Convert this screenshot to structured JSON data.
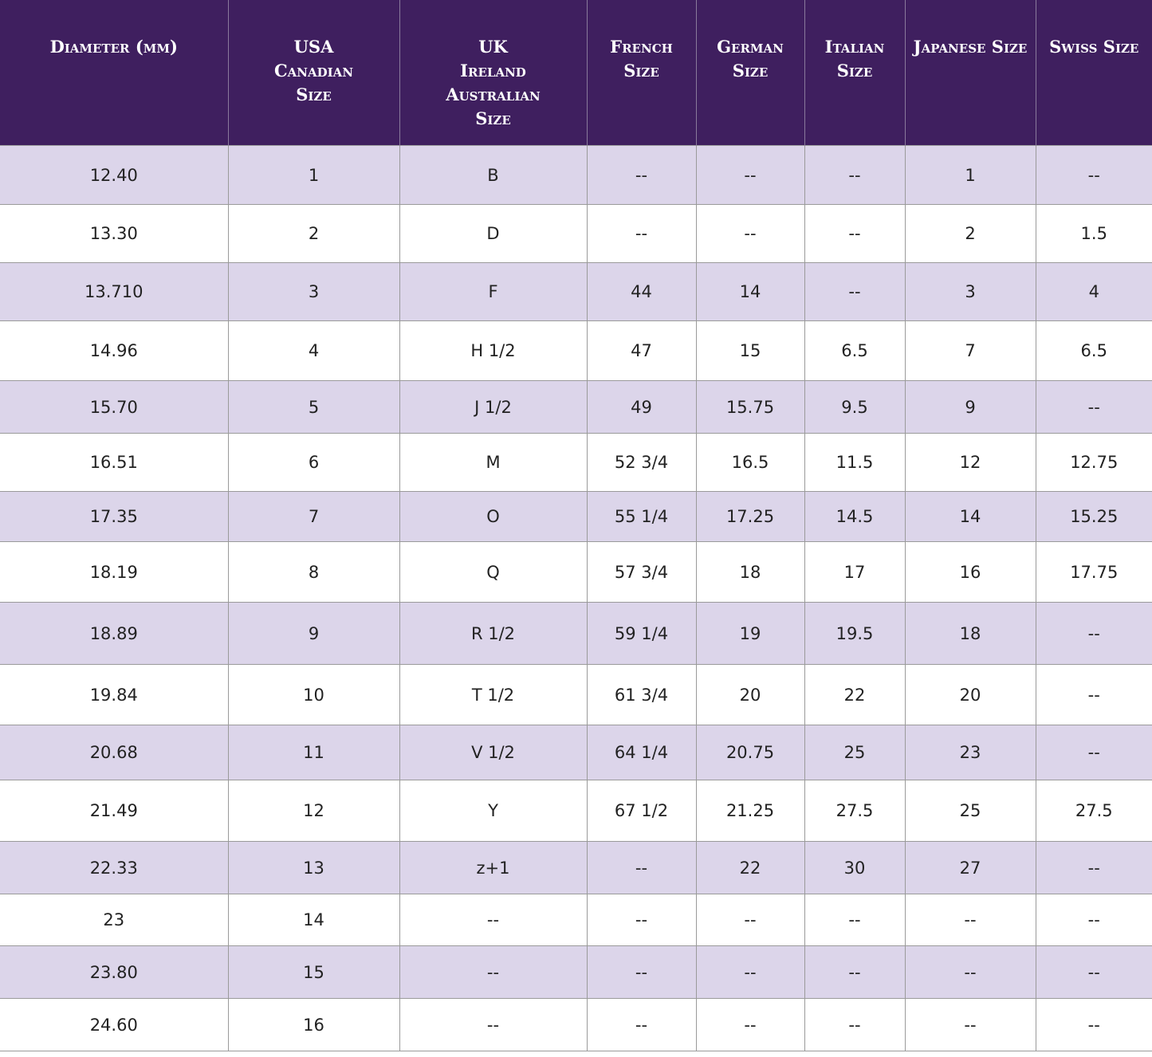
{
  "table": {
    "header": [
      [
        "Diameter (mm)"
      ],
      [
        "USA",
        "Canadian",
        "Size"
      ],
      [
        "UK",
        "Ireland",
        "Australian",
        "Size"
      ],
      [
        "French",
        "Size"
      ],
      [
        "German",
        "Size"
      ],
      [
        "Italian",
        "Size"
      ],
      [
        "Japanese Size"
      ],
      [
        "Swiss Size"
      ]
    ],
    "rows": [
      [
        "12.40",
        "1",
        "B",
        "--",
        "--",
        "--",
        "1",
        "--"
      ],
      [
        "13.30",
        "2",
        "D",
        "--",
        "--",
        "--",
        "2",
        "1.5"
      ],
      [
        "13.710",
        "3",
        "F",
        "44",
        "14",
        "--",
        "3",
        "4"
      ],
      [
        "14.96",
        "4",
        "H 1/2",
        "47",
        "15",
        "6.5",
        "7",
        "6.5"
      ],
      [
        "15.70",
        "5",
        "J 1/2",
        "49",
        "15.75",
        "9.5",
        "9",
        "--"
      ],
      [
        "16.51",
        "6",
        "M",
        "52 3/4",
        "16.5",
        "11.5",
        "12",
        "12.75"
      ],
      [
        "17.35",
        "7",
        "O",
        "55 1/4",
        "17.25",
        "14.5",
        "14",
        "15.25"
      ],
      [
        "18.19",
        "8",
        "Q",
        "57 3/4",
        "18",
        "17",
        "16",
        "17.75"
      ],
      [
        "18.89",
        "9",
        "R 1/2",
        "59 1/4",
        "19",
        "19.5",
        "18",
        "--"
      ],
      [
        "19.84",
        "10",
        "T 1/2",
        "61 3/4",
        "20",
        "22",
        "20",
        "--"
      ],
      [
        "20.68",
        "11",
        "V 1/2",
        "64 1/4",
        "20.75",
        "25",
        "23",
        "--"
      ],
      [
        "21.49",
        "12",
        "Y",
        "67 1/2",
        "21.25",
        "27.5",
        "25",
        "27.5"
      ],
      [
        "22.33",
        "13",
        "z+1",
        "--",
        "22",
        "30",
        "27",
        "--"
      ],
      [
        "23",
        "14",
        "--",
        "--",
        "--",
        "--",
        "--",
        "--"
      ],
      [
        "23.80",
        "15",
        "--",
        "--",
        "--",
        "--",
        "--",
        "--"
      ],
      [
        "24.60",
        "16",
        "--",
        "--",
        "--",
        "--",
        "--",
        "--"
      ]
    ]
  }
}
